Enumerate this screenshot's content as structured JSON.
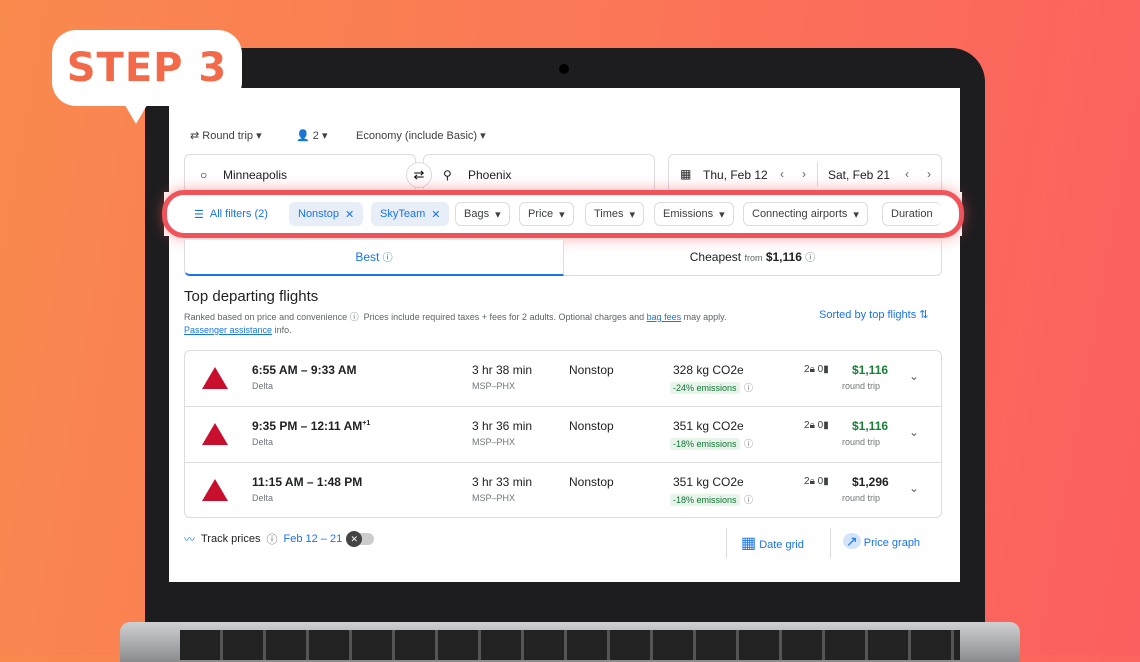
{
  "badge": "STEP 3",
  "search": {
    "trip_type": "Round trip",
    "passengers": "2",
    "cabin": "Economy (include Basic)",
    "origin": "Minneapolis",
    "destination": "Phoenix",
    "depart_date": "Thu, Feb 12",
    "return_date": "Sat, Feb 21"
  },
  "filters": {
    "all": "All filters (2)",
    "chips": [
      "Nonstop",
      "SkyTeam"
    ],
    "dropdowns": [
      "Bags",
      "Price",
      "Times",
      "Emissions",
      "Connecting airports",
      "Duration"
    ]
  },
  "tabs": {
    "best": "Best",
    "cheapest": "Cheapest",
    "from": "from",
    "cheapest_price": "$1,116"
  },
  "results": {
    "title": "Top departing flights",
    "ranked": "Ranked based on price and convenience",
    "prices_note": "Prices include required taxes + fees for 2 adults. Optional charges and",
    "bag_fees": "bag fees",
    "may_apply": "may apply.",
    "passenger_assistance": "Passenger assistance",
    "info": "info.",
    "sorted": "Sorted by top flights"
  },
  "flights": [
    {
      "times": "6:55 AM – 9:33 AM",
      "plus": "",
      "airline": "Delta",
      "duration": "3 hr 38 min",
      "route": "MSP–PHX",
      "stops": "Nonstop",
      "co2": "328 kg CO2e",
      "emissions": "-24% emissions",
      "carry": "2",
      "checked": "0",
      "price": "$1,116",
      "price_color": "#188038",
      "price_type": "round trip"
    },
    {
      "times": "9:35 PM – 12:11 AM",
      "plus": "+1",
      "airline": "Delta",
      "duration": "3 hr 36 min",
      "route": "MSP–PHX",
      "stops": "Nonstop",
      "co2": "351 kg CO2e",
      "emissions": "-18% emissions",
      "carry": "2",
      "checked": "0",
      "price": "$1,116",
      "price_color": "#188038",
      "price_type": "round trip"
    },
    {
      "times": "11:15 AM – 1:48 PM",
      "plus": "",
      "airline": "Delta",
      "duration": "3 hr 33 min",
      "route": "MSP–PHX",
      "stops": "Nonstop",
      "co2": "351 kg CO2e",
      "emissions": "-18% emissions",
      "carry": "2",
      "checked": "0",
      "price": "$1,296",
      "price_color": "#202124",
      "price_type": "round trip"
    }
  ],
  "footer": {
    "track": "Track prices",
    "dates": "Feb 12 – 21",
    "date_grid": "Date grid",
    "price_graph": "Price graph"
  }
}
